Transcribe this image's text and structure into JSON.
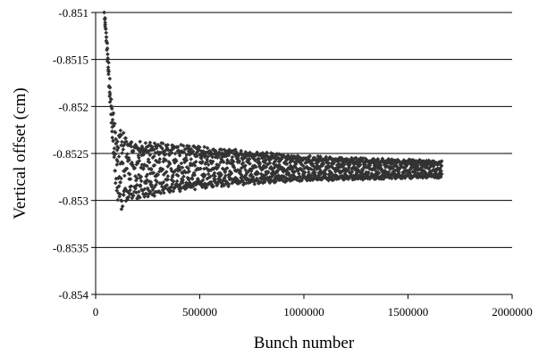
{
  "chart_data": {
    "type": "scatter",
    "xlabel": "Bunch number",
    "ylabel": "Vertical offset (cm)",
    "xlim": [
      0,
      2000000
    ],
    "ylim": [
      -0.854,
      -0.851
    ],
    "x_ticks": [
      0,
      500000,
      1000000,
      1500000,
      2000000
    ],
    "x_tick_labels": [
      "0",
      "500000",
      "1000000",
      "1500000",
      "2000000"
    ],
    "y_ticks": [
      -0.851,
      -0.8515,
      -0.852,
      -0.8525,
      -0.853,
      -0.8535,
      -0.854
    ],
    "y_tick_labels": [
      "-0.851",
      "-0.8515",
      "-0.852",
      "-0.8525",
      "-0.853",
      "-0.8535",
      "-0.854"
    ],
    "grid": "horizontal",
    "legend": "none",
    "marker": "diamond",
    "color": "#333333",
    "envelope": {
      "x": [
        40000,
        50000,
        60000,
        70000,
        80000,
        90000,
        100000,
        110000,
        120000,
        130000,
        150000,
        200000,
        300000,
        500000,
        800000,
        1000000,
        1300000,
        1660000
      ],
      "upper": [
        -0.851,
        -0.8512,
        -0.8515,
        -0.8518,
        -0.852,
        -0.85215,
        -0.85225,
        -0.85225,
        -0.85223,
        -0.85225,
        -0.8523,
        -0.85235,
        -0.85237,
        -0.85242,
        -0.85248,
        -0.85252,
        -0.85255,
        -0.85257
      ],
      "lower": [
        -0.851,
        -0.8513,
        -0.8517,
        -0.8521,
        -0.8524,
        -0.85275,
        -0.85295,
        -0.85305,
        -0.85312,
        -0.85306,
        -0.85302,
        -0.853,
        -0.85295,
        -0.85288,
        -0.85282,
        -0.8528,
        -0.85278,
        -0.85276
      ]
    }
  }
}
